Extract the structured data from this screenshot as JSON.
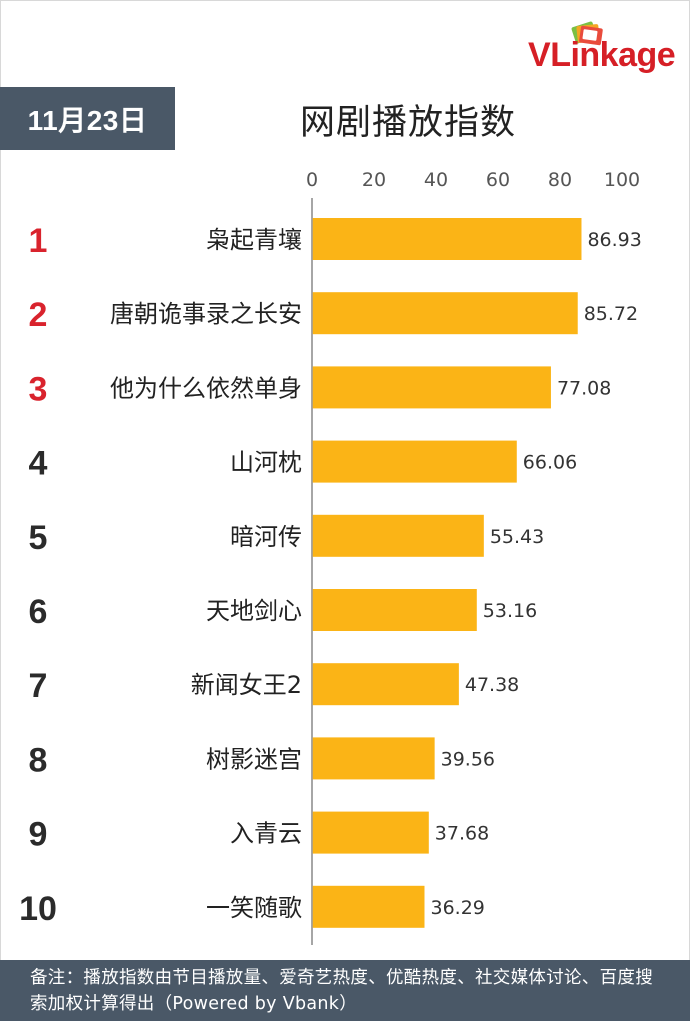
{
  "brand": {
    "name_v": "V",
    "name_rest": "Link",
    "name_tail": "age",
    "color": "#d61f26"
  },
  "header": {
    "date": "11月23日",
    "title": "网剧播放指数"
  },
  "footer": {
    "note": "备注：播放指数由节目播放量、爱奇艺热度、优酷热度、社交媒体讨论、百度搜索加权计算得出（Powered by Vbank）"
  },
  "colors": {
    "bar": "#fbb416",
    "rank_top": "#d9232d",
    "rank_other": "#2b2b2b",
    "axis": "#888888",
    "panel": "#4a5867"
  },
  "chart_data": {
    "type": "bar",
    "orientation": "horizontal",
    "title": "网剧播放指数",
    "xlim": [
      0,
      100
    ],
    "x_ticks": [
      0,
      20,
      40,
      60,
      80,
      100
    ],
    "ranks": [
      "1",
      "2",
      "3",
      "4",
      "5",
      "6",
      "7",
      "8",
      "9",
      "10"
    ],
    "categories": [
      "枭起青壤",
      "唐朝诡事录之长安",
      "他为什么依然单身",
      "山河枕",
      "暗河传",
      "天地剑心",
      "新闻女王2",
      "树影迷宫",
      "入青云",
      "一笑随歌"
    ],
    "values": [
      86.93,
      85.72,
      77.08,
      66.06,
      55.43,
      53.16,
      47.38,
      39.56,
      37.68,
      36.29
    ],
    "value_labels": [
      "86.93",
      "85.72",
      "77.08",
      "66.06",
      "55.43",
      "53.16",
      "47.38",
      "39.56",
      "37.68",
      "36.29"
    ],
    "grid": false,
    "legend": "none"
  }
}
